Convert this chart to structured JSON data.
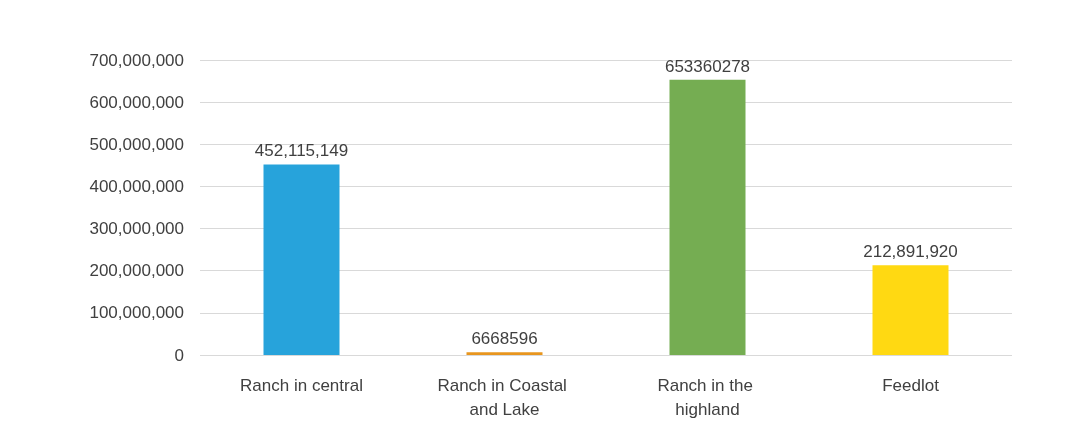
{
  "chart_data": {
    "type": "bar",
    "categories": [
      "Ranch in central",
      "Ranch in Coastal and Lake",
      "Ranch in the highland",
      "Feedlot"
    ],
    "values": [
      452115149,
      6668596,
      653360278,
      212891920
    ],
    "colors": [
      "#27a3db",
      "#e8961e",
      "#75ad52",
      "#ffd912"
    ],
    "value_labels": [
      "452,115,149",
      "6668596",
      "653360278",
      "212,891,920"
    ],
    "ylim": [
      0,
      700000000
    ],
    "yticks": [
      0,
      {
        "value": 100000000,
        "label": "100,000,000"
      },
      {
        "value": 200000000,
        "label": "200,000,000"
      },
      {
        "value": 300000000,
        "label": "300,000,000"
      },
      {
        "value": 400000000,
        "label": "400,000,000"
      },
      {
        "value": 500000000,
        "label": "500,000,000"
      },
      {
        "value": 600000000,
        "label": "600,000,000"
      },
      {
        "value": 700000000,
        "label": "700,000,000"
      }
    ],
    "grid": true
  }
}
